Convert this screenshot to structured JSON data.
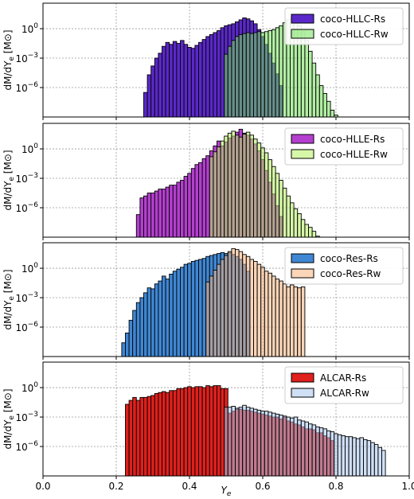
{
  "figure": {
    "xlabel": "Y",
    "xlabel_sub": "e",
    "ylabel": "dM/dY",
    "ylabel_sub": "e",
    "ylabel_unit": "[M⊙]",
    "x_ticks": [
      "0.0",
      "0.2",
      "0.4",
      "0.6",
      "0.8",
      "1.0"
    ],
    "y_ticks": [
      {
        "base": "10",
        "exp": "0"
      },
      {
        "base": "10",
        "exp": "−3"
      },
      {
        "base": "10",
        "exp": "−6"
      }
    ]
  },
  "chart_data": [
    {
      "type": "bar",
      "subtype": "histogram",
      "xlim": [
        0,
        1
      ],
      "ylog_range": [
        -9,
        2.6
      ],
      "ytick_exponents": [
        0,
        -3,
        -6
      ],
      "bin_width": 0.01,
      "grid": true,
      "legend_position": "top-right",
      "series": [
        {
          "name": "coco-HLLC-Rs",
          "color": "#5a28c8",
          "x_start": 0.275,
          "log_values": [
            -6.5,
            -4.7,
            -3.8,
            -3.0,
            -2.5,
            -1.8,
            -1.4,
            -1.6,
            -1.3,
            -1.5,
            -1.2,
            -1.6,
            -1.9,
            -2.0,
            -1.7,
            -1.4,
            -1.1,
            -0.8,
            -0.6,
            -0.4,
            -0.2,
            0.1,
            0.3,
            0.4,
            0.5,
            0.7,
            0.9,
            1.1,
            1.0,
            0.8,
            0.5,
            -0.1,
            -0.8,
            -1.6,
            -2.5,
            -3.5,
            -4.6,
            -5.8
          ]
        },
        {
          "name": "coco-HLLC-Rw",
          "color": "#72e05a",
          "x_start": 0.495,
          "log_values": [
            -2.6,
            -1.8,
            -1.2,
            -0.8,
            -0.6,
            -0.5,
            -0.4,
            -0.5,
            -0.4,
            -0.3,
            -0.4,
            -0.3,
            -0.2,
            -0.1,
            0.1,
            0.3,
            0.6,
            0.9,
            1.1,
            0.7,
            0.3,
            -0.3,
            -1.2,
            -2.3,
            -3.5,
            -4.7,
            -5.8,
            -6.6,
            -7.4,
            -8.3,
            -8.8,
            -9.0,
            -9.0,
            -9.0,
            -9.0
          ]
        }
      ]
    },
    {
      "type": "bar",
      "subtype": "histogram",
      "xlim": [
        0,
        1
      ],
      "ylog_range": [
        -9,
        2.6
      ],
      "ytick_exponents": [
        0,
        -3,
        -6
      ],
      "bin_width": 0.01,
      "grid": true,
      "legend_position": "top-right",
      "series": [
        {
          "name": "coco-HLLE-Rs",
          "color": "#b43fcf",
          "x_start": 0.255,
          "log_values": [
            -6.7,
            -5.0,
            -4.8,
            -4.5,
            -4.5,
            -4.3,
            -4.1,
            -4.1,
            -3.9,
            -3.7,
            -3.7,
            -3.4,
            -3.2,
            -2.8,
            -2.5,
            -2.0,
            -1.6,
            -1.4,
            -1.0,
            -0.7,
            -0.2,
            0.3,
            0.8,
            0.3,
            0.7,
            1.1,
            1.3,
            1.7,
            2.0,
            1.6,
            1.4,
            1.0,
            0.5,
            -0.2,
            -1.1,
            -2.2,
            -3.4,
            -4.6,
            -5.8,
            -6.9
          ]
        },
        {
          "name": "coco-HLLE-Rw",
          "color": "#b5f060",
          "x_start": 0.455,
          "log_values": [
            -0.8,
            -0.3,
            0.2,
            0.8,
            1.3,
            1.6,
            1.8,
            1.4,
            1.2,
            1.5,
            1.7,
            1.4,
            1.0,
            0.6,
            0.1,
            -0.4,
            -1.1,
            -1.8,
            -2.5,
            -3.2,
            -4.0,
            -4.8,
            -5.5,
            -6.1,
            -6.6,
            -7.2,
            -7.7,
            -8.0,
            -8.4,
            -8.9
          ]
        }
      ]
    },
    {
      "type": "bar",
      "subtype": "histogram",
      "xlim": [
        0,
        1
      ],
      "ylog_range": [
        -9,
        2.6
      ],
      "ytick_exponents": [
        0,
        -3,
        -6
      ],
      "bin_width": 0.01,
      "grid": true,
      "legend_position": "top-right",
      "series": [
        {
          "name": "coco-Res-Rs",
          "color": "#3f87d4",
          "x_start": 0.215,
          "log_values": [
            -7.6,
            -6.6,
            -5.3,
            -4.3,
            -3.5,
            -3.0,
            -2.5,
            -2.0,
            -2.1,
            -1.6,
            -1.3,
            -0.8,
            -1.1,
            -0.6,
            -0.3,
            -0.1,
            0.1,
            0.4,
            0.5,
            0.7,
            0.8,
            0.9,
            1.0,
            1.2,
            1.3,
            1.4,
            1.5,
            1.6,
            1.5,
            1.6,
            1.4,
            1.2,
            0.9,
            0.4,
            -0.3
          ]
        },
        {
          "name": "coco-Res-Rw",
          "color": "#f5b27e",
          "x_start": 0.445,
          "log_values": [
            -1.4,
            -0.8,
            -0.2,
            0.4,
            0.9,
            1.3,
            1.7,
            2.0,
            1.9,
            1.7,
            1.4,
            1.2,
            0.9,
            0.7,
            0.4,
            0.1,
            -0.3,
            -0.5,
            -0.8,
            -1.1,
            -1.3,
            -1.6,
            -1.9,
            -1.7,
            -1.9,
            -2.0,
            -1.9
          ]
        }
      ]
    },
    {
      "type": "bar",
      "subtype": "histogram",
      "xlim": [
        0,
        1
      ],
      "ylog_range": [
        -9,
        2.6
      ],
      "ytick_exponents": [
        0,
        -3,
        -6
      ],
      "bin_width": 0.01,
      "grid": true,
      "legend_position": "top-right",
      "series": [
        {
          "name": "ALCAR-Rs",
          "color": "#e0201c",
          "x_start": 0.225,
          "log_values": [
            -1.7,
            -1.3,
            -1.0,
            -1.3,
            -1.0,
            -1.0,
            -0.9,
            -0.8,
            -0.6,
            -0.5,
            -0.4,
            -0.5,
            -0.3,
            -0.3,
            -0.1,
            -0.1,
            0.0,
            0.1,
            0.0,
            0.1,
            0.1,
            0.0,
            0.2,
            0.1,
            0.2,
            0.2,
            -0.1,
            -0.1,
            -2.6,
            -2.4,
            -2.2,
            -2.2,
            -2.3,
            -2.3,
            -2.4,
            -2.5,
            -2.6,
            -2.7,
            -2.8,
            -2.9,
            -3.0,
            -3.0,
            -3.2,
            -3.0,
            -3.4,
            -3.5,
            -3.7,
            -3.8,
            -4.0,
            -4.2,
            -4.2,
            -4.3,
            -4.6,
            -4.6,
            -4.9,
            -5.1,
            -5.4
          ]
        },
        {
          "name": "ALCAR-Rw",
          "color": "#a8c4ec",
          "x_start": 0.495,
          "log_values": [
            -2.0,
            -2.0,
            -1.9,
            -2.1,
            -2.0,
            -1.8,
            -2.0,
            -2.1,
            -2.2,
            -2.3,
            -2.4,
            -2.4,
            -2.5,
            -2.6,
            -2.7,
            -2.8,
            -2.9,
            -3.0,
            -3.1,
            -3.0,
            -3.3,
            -3.4,
            -3.5,
            -3.7,
            -3.8,
            -4.0,
            -4.1,
            -4.2,
            -4.4,
            -4.5,
            -4.7,
            -4.8,
            -4.9,
            -5.0,
            -5.0,
            -5.1,
            -5.2,
            -5.1,
            -5.3,
            -5.4,
            -5.6,
            -5.8,
            -6.1,
            -6.4
          ]
        }
      ]
    }
  ]
}
